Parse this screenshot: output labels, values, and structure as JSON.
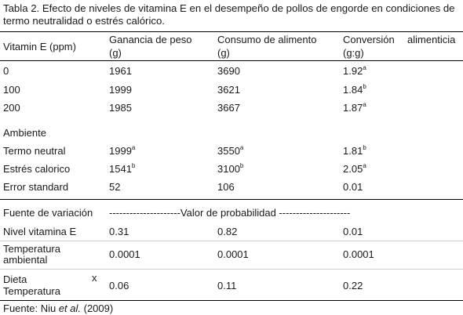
{
  "caption": "Tabla 2.  Efecto de niveles de vitamina E en el desempeño de pollos de engorde en condiciones de termo neutralidad o estrés calórico.",
  "header": {
    "col0": "Vitamin E (ppm)",
    "col1_line1": "Ganancia de peso",
    "col1_line2": "(g)",
    "col2_line1": "Consumo de alimento",
    "col2_line2": "(g)",
    "col3_line1_a": "Conversión",
    "col3_line1_b": "alimenticia",
    "col3_line2": "(g:g)"
  },
  "vitamin_rows": [
    {
      "label": "0",
      "ganancia": "1961",
      "consumo": "3690",
      "conversion": "1.92",
      "conversion_sup": "a"
    },
    {
      "label": "100",
      "ganancia": "1999",
      "consumo": "3621",
      "conversion": "1.84",
      "conversion_sup": "b"
    },
    {
      "label": "200",
      "ganancia": "1985",
      "consumo": "3667",
      "conversion": "1.87",
      "conversion_sup": "a"
    }
  ],
  "ambiente_label": "Ambiente",
  "ambiente_rows": [
    {
      "label": "Termo neutral",
      "ganancia": "1999",
      "ganancia_sup": "a",
      "consumo": "3550",
      "consumo_sup": "a",
      "conversion": "1.81",
      "conversion_sup": "b"
    },
    {
      "label": "Estrés calorico",
      "ganancia": "1541",
      "ganancia_sup": "b",
      "consumo": "3100",
      "consumo_sup": "b",
      "conversion": "2.05",
      "conversion_sup": "a"
    }
  ],
  "error_row": {
    "label": "Error standard",
    "ganancia": "52",
    "consumo": "106",
    "conversion": "0.01"
  },
  "fuente_label": "Fuente de variación",
  "valor_probabilidad": "---------------------Valor de probabilidad ---------------------",
  "prob_rows": [
    {
      "label": "Nivel vitamina E",
      "ganancia": "0.31",
      "consumo": "0.82",
      "conversion": "0.01"
    },
    {
      "label_line1": "Temperatura",
      "label_line2": "ambiental",
      "ganancia": "0.0001",
      "consumo": "0.0001",
      "conversion": "0.0001"
    },
    {
      "label_line1": "Dieta",
      "label_line2": "Temperatura",
      "x_mark": "x",
      "ganancia": "0.06",
      "consumo": "0.11",
      "conversion": "0.22"
    }
  ],
  "footer": {
    "prefix": "Fuente:  Niu ",
    "italic": "et al.",
    "suffix": " (2009)"
  }
}
